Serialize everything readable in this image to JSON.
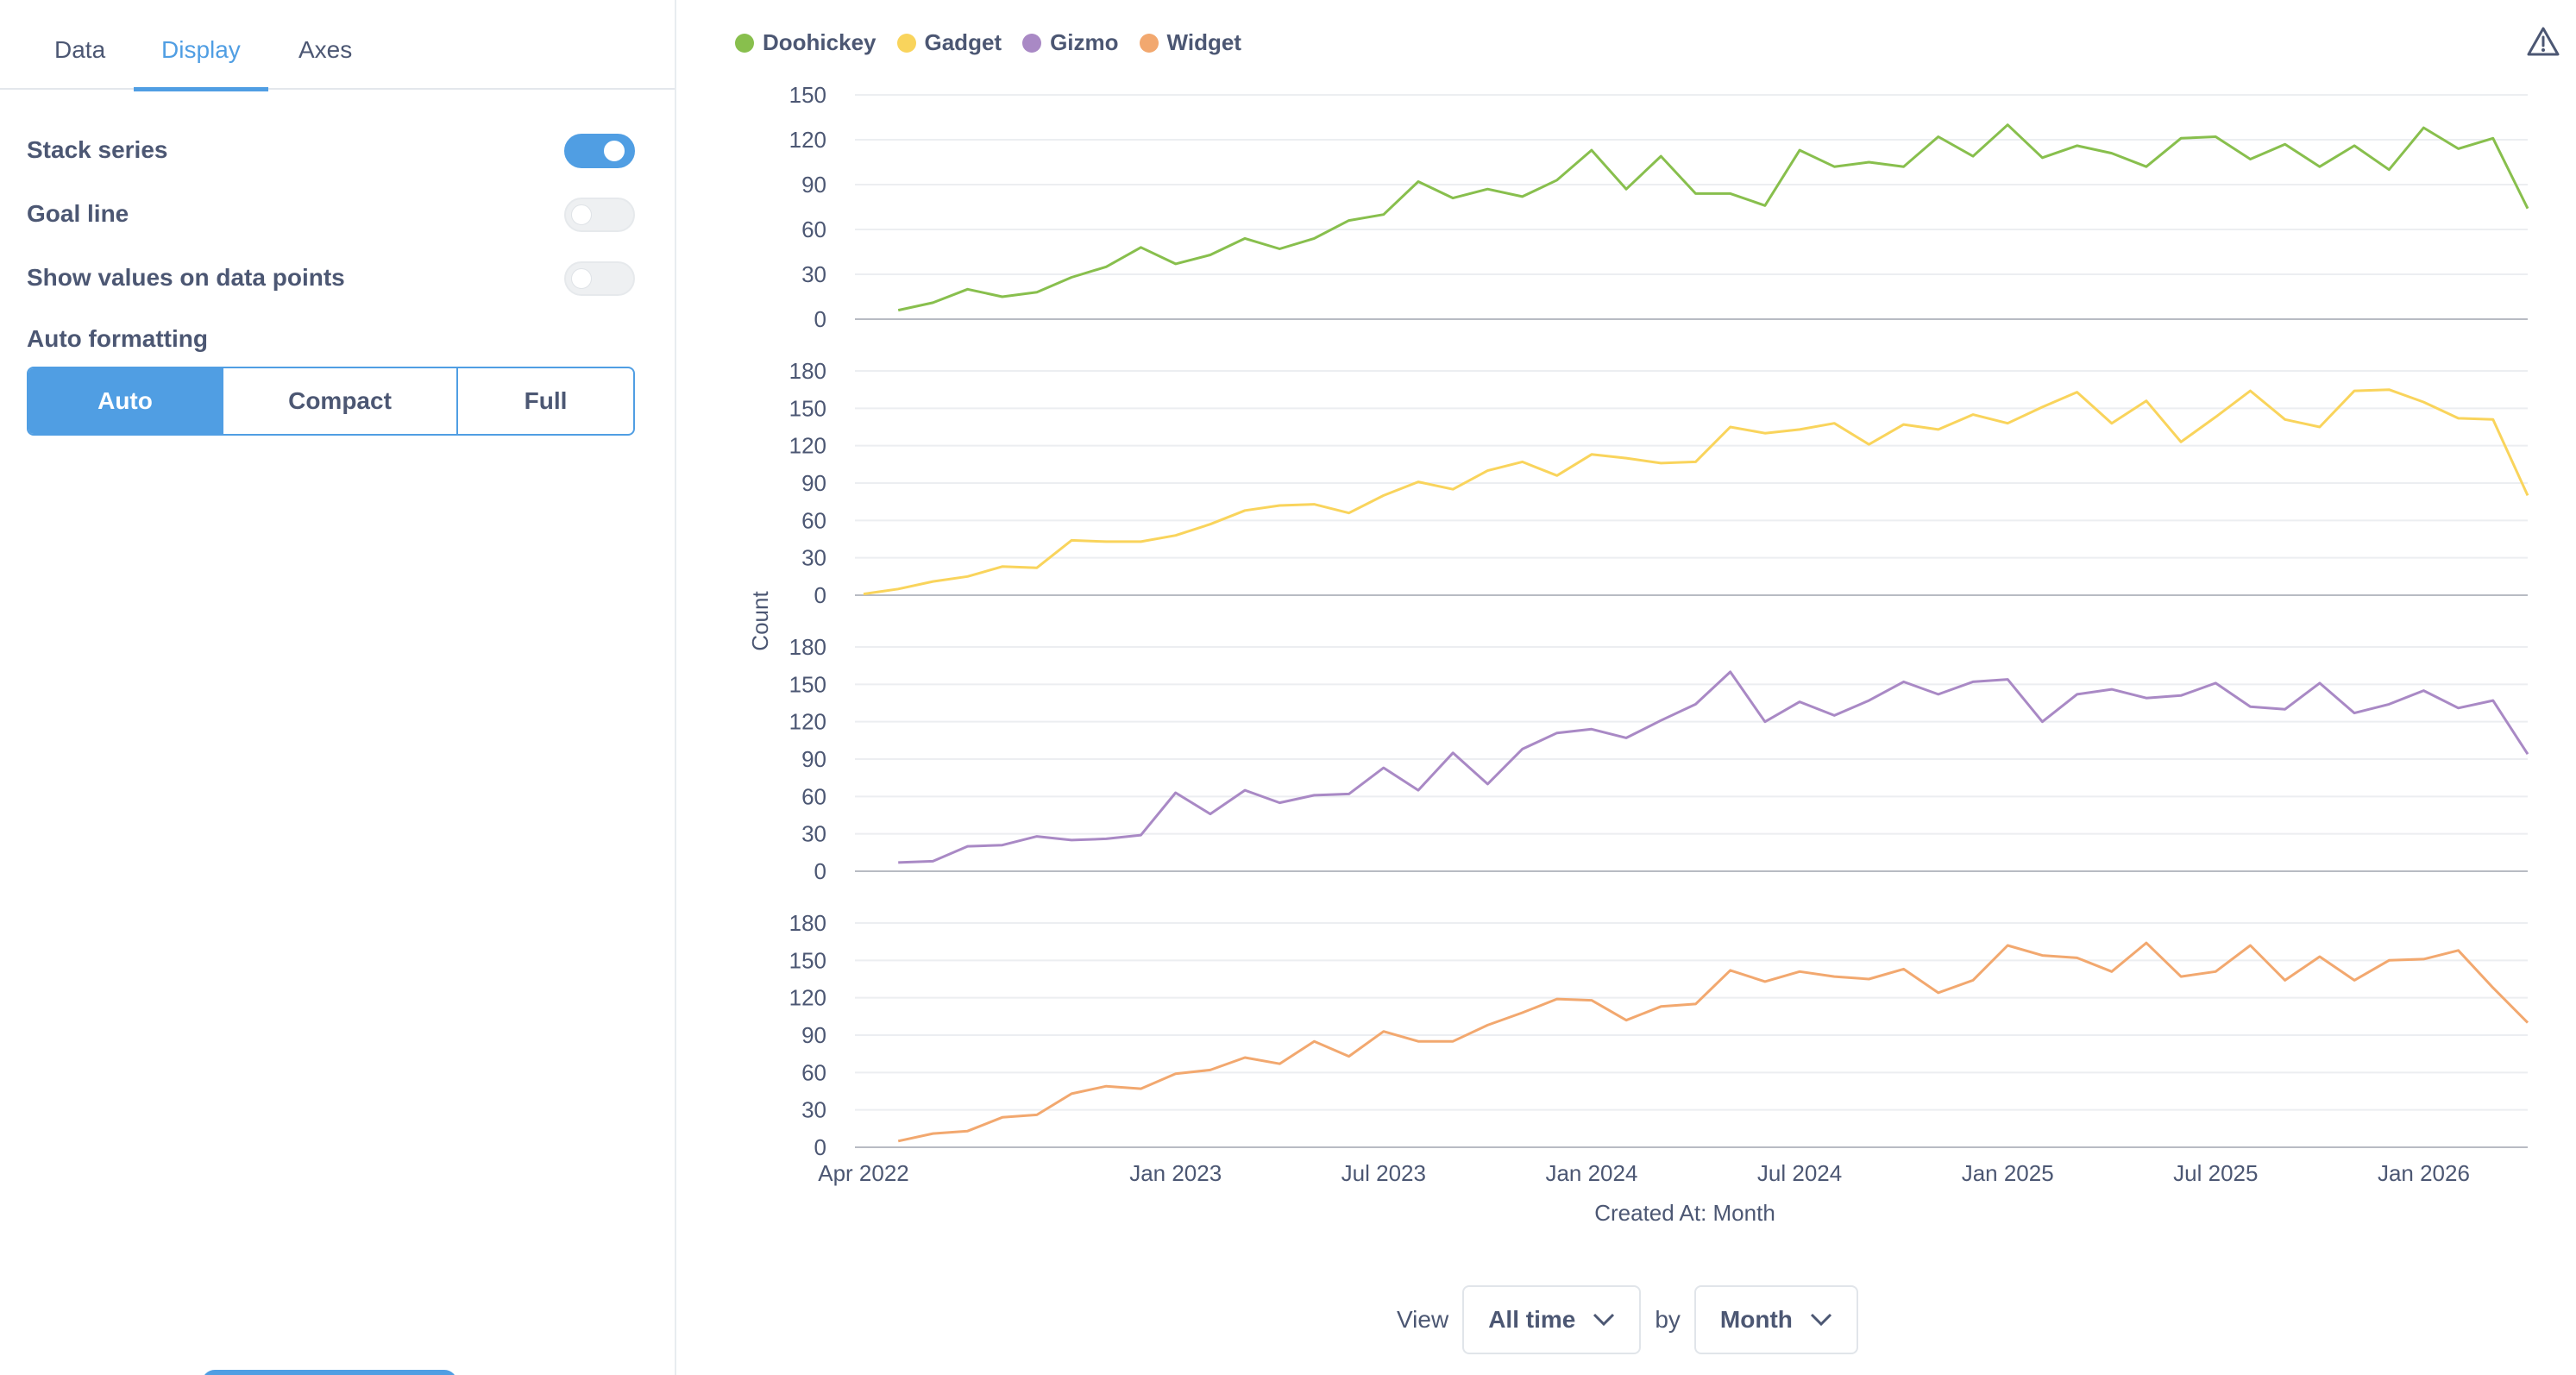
{
  "sidebar": {
    "tabs": [
      {
        "label": "Data"
      },
      {
        "label": "Display"
      },
      {
        "label": "Axes"
      }
    ],
    "settings": {
      "stack_series": {
        "label": "Stack series",
        "enabled": true
      },
      "goal_line": {
        "label": "Goal line",
        "enabled": false
      },
      "show_values": {
        "label": "Show values on data points",
        "enabled": false
      }
    },
    "auto_formatting": {
      "label": "Auto formatting",
      "options": [
        "Auto",
        "Compact",
        "Full"
      ],
      "selected": "Auto"
    }
  },
  "legend": [
    {
      "label": "Doohickey",
      "color": "#88bf4d"
    },
    {
      "label": "Gadget",
      "color": "#f9d45c"
    },
    {
      "label": "Gizmo",
      "color": "#a989c5"
    },
    {
      "label": "Widget",
      "color": "#f2a86f"
    }
  ],
  "icons": {
    "warning": "warning-triangle-icon",
    "chevron": "chevron-down-icon"
  },
  "footer": {
    "view_label": "View",
    "range_value": "All time",
    "by_label": "by",
    "unit_value": "Month"
  },
  "chart_data": {
    "type": "line",
    "layout": "stacked-panels",
    "xlabel": "Created At: Month",
    "ylabel": "Count",
    "x_ticks": [
      "Apr 2022",
      "Jan 2023",
      "Jul 2023",
      "Jan 2024",
      "Jul 2024",
      "Jan 2025",
      "Jul 2025",
      "Jan 2026"
    ],
    "x_start": "2022-04",
    "x_end": "2026-04",
    "grid": true,
    "series": [
      {
        "name": "Doohickey",
        "color": "#88bf4d",
        "y_ticks": [
          0,
          30,
          60,
          90,
          120,
          150
        ],
        "ylim": [
          0,
          150
        ],
        "points": [
          [
            "2022-05",
            6
          ],
          [
            "2022-06",
            11
          ],
          [
            "2022-07",
            20
          ],
          [
            "2022-08",
            15
          ],
          [
            "2022-09",
            18
          ],
          [
            "2022-10",
            28
          ],
          [
            "2022-11",
            35
          ],
          [
            "2022-12",
            48
          ],
          [
            "2023-01",
            37
          ],
          [
            "2023-02",
            43
          ],
          [
            "2023-03",
            54
          ],
          [
            "2023-04",
            47
          ],
          [
            "2023-05",
            54
          ],
          [
            "2023-06",
            66
          ],
          [
            "2023-07",
            70
          ],
          [
            "2023-08",
            92
          ],
          [
            "2023-09",
            81
          ],
          [
            "2023-10",
            87
          ],
          [
            "2023-11",
            82
          ],
          [
            "2023-12",
            93
          ],
          [
            "2024-01",
            113
          ],
          [
            "2024-02",
            87
          ],
          [
            "2024-03",
            109
          ],
          [
            "2024-04",
            84
          ],
          [
            "2024-05",
            84
          ],
          [
            "2024-06",
            76
          ],
          [
            "2024-07",
            113
          ],
          [
            "2024-08",
            102
          ],
          [
            "2024-09",
            105
          ],
          [
            "2024-10",
            102
          ],
          [
            "2024-11",
            122
          ],
          [
            "2024-12",
            109
          ],
          [
            "2025-01",
            130
          ],
          [
            "2025-02",
            108
          ],
          [
            "2025-03",
            116
          ],
          [
            "2025-04",
            111
          ],
          [
            "2025-05",
            102
          ],
          [
            "2025-06",
            121
          ],
          [
            "2025-07",
            122
          ],
          [
            "2025-08",
            107
          ],
          [
            "2025-09",
            117
          ],
          [
            "2025-10",
            102
          ],
          [
            "2025-11",
            116
          ],
          [
            "2025-12",
            100
          ],
          [
            "2026-01",
            128
          ],
          [
            "2026-02",
            114
          ],
          [
            "2026-03",
            121
          ],
          [
            "2026-04",
            74
          ]
        ]
      },
      {
        "name": "Gadget",
        "color": "#f9d45c",
        "y_ticks": [
          0,
          30,
          60,
          90,
          120,
          150,
          180
        ],
        "ylim": [
          0,
          180
        ],
        "points": [
          [
            "2022-04",
            1
          ],
          [
            "2022-05",
            5
          ],
          [
            "2022-06",
            11
          ],
          [
            "2022-07",
            15
          ],
          [
            "2022-08",
            23
          ],
          [
            "2022-09",
            22
          ],
          [
            "2022-10",
            44
          ],
          [
            "2022-11",
            43
          ],
          [
            "2022-12",
            43
          ],
          [
            "2023-01",
            48
          ],
          [
            "2023-02",
            57
          ],
          [
            "2023-03",
            68
          ],
          [
            "2023-04",
            72
          ],
          [
            "2023-05",
            73
          ],
          [
            "2023-06",
            66
          ],
          [
            "2023-07",
            80
          ],
          [
            "2023-08",
            91
          ],
          [
            "2023-09",
            85
          ],
          [
            "2023-10",
            100
          ],
          [
            "2023-11",
            107
          ],
          [
            "2023-12",
            96
          ],
          [
            "2024-01",
            113
          ],
          [
            "2024-02",
            110
          ],
          [
            "2024-03",
            106
          ],
          [
            "2024-04",
            107
          ],
          [
            "2024-05",
            135
          ],
          [
            "2024-06",
            130
          ],
          [
            "2024-07",
            133
          ],
          [
            "2024-08",
            138
          ],
          [
            "2024-09",
            121
          ],
          [
            "2024-10",
            137
          ],
          [
            "2024-11",
            133
          ],
          [
            "2024-12",
            145
          ],
          [
            "2025-01",
            138
          ],
          [
            "2025-02",
            151
          ],
          [
            "2025-03",
            163
          ],
          [
            "2025-04",
            138
          ],
          [
            "2025-05",
            156
          ],
          [
            "2025-06",
            123
          ],
          [
            "2025-07",
            143
          ],
          [
            "2025-08",
            164
          ],
          [
            "2025-09",
            141
          ],
          [
            "2025-10",
            135
          ],
          [
            "2025-11",
            164
          ],
          [
            "2025-12",
            165
          ],
          [
            "2026-01",
            155
          ],
          [
            "2026-02",
            142
          ],
          [
            "2026-03",
            141
          ],
          [
            "2026-04",
            80
          ]
        ]
      },
      {
        "name": "Gizmo",
        "color": "#a989c5",
        "y_ticks": [
          0,
          30,
          60,
          90,
          120,
          150,
          180
        ],
        "ylim": [
          0,
          180
        ],
        "points": [
          [
            "2022-05",
            7
          ],
          [
            "2022-06",
            8
          ],
          [
            "2022-07",
            20
          ],
          [
            "2022-08",
            21
          ],
          [
            "2022-09",
            28
          ],
          [
            "2022-10",
            25
          ],
          [
            "2022-11",
            26
          ],
          [
            "2022-12",
            29
          ],
          [
            "2023-01",
            63
          ],
          [
            "2023-02",
            46
          ],
          [
            "2023-03",
            65
          ],
          [
            "2023-04",
            55
          ],
          [
            "2023-05",
            61
          ],
          [
            "2023-06",
            62
          ],
          [
            "2023-07",
            83
          ],
          [
            "2023-08",
            65
          ],
          [
            "2023-09",
            95
          ],
          [
            "2023-10",
            70
          ],
          [
            "2023-11",
            98
          ],
          [
            "2023-12",
            111
          ],
          [
            "2024-01",
            114
          ],
          [
            "2024-02",
            107
          ],
          [
            "2024-03",
            121
          ],
          [
            "2024-04",
            134
          ],
          [
            "2024-05",
            160
          ],
          [
            "2024-06",
            120
          ],
          [
            "2024-07",
            136
          ],
          [
            "2024-08",
            125
          ],
          [
            "2024-09",
            137
          ],
          [
            "2024-10",
            152
          ],
          [
            "2024-11",
            142
          ],
          [
            "2024-12",
            152
          ],
          [
            "2025-01",
            154
          ],
          [
            "2025-02",
            120
          ],
          [
            "2025-03",
            142
          ],
          [
            "2025-04",
            146
          ],
          [
            "2025-05",
            139
          ],
          [
            "2025-06",
            141
          ],
          [
            "2025-07",
            151
          ],
          [
            "2025-08",
            132
          ],
          [
            "2025-09",
            130
          ],
          [
            "2025-10",
            151
          ],
          [
            "2025-11",
            127
          ],
          [
            "2025-12",
            134
          ],
          [
            "2026-01",
            145
          ],
          [
            "2026-02",
            131
          ],
          [
            "2026-03",
            137
          ],
          [
            "2026-04",
            94
          ]
        ]
      },
      {
        "name": "Widget",
        "color": "#f2a86f",
        "y_ticks": [
          0,
          30,
          60,
          90,
          120,
          150,
          180
        ],
        "ylim": [
          0,
          180
        ],
        "points": [
          [
            "2022-05",
            5
          ],
          [
            "2022-06",
            11
          ],
          [
            "2022-07",
            13
          ],
          [
            "2022-08",
            24
          ],
          [
            "2022-09",
            26
          ],
          [
            "2022-10",
            43
          ],
          [
            "2022-11",
            49
          ],
          [
            "2022-12",
            47
          ],
          [
            "2023-01",
            59
          ],
          [
            "2023-02",
            62
          ],
          [
            "2023-03",
            72
          ],
          [
            "2023-04",
            67
          ],
          [
            "2023-05",
            85
          ],
          [
            "2023-06",
            73
          ],
          [
            "2023-07",
            93
          ],
          [
            "2023-08",
            85
          ],
          [
            "2023-09",
            85
          ],
          [
            "2023-10",
            98
          ],
          [
            "2023-11",
            108
          ],
          [
            "2023-12",
            119
          ],
          [
            "2024-01",
            118
          ],
          [
            "2024-02",
            102
          ],
          [
            "2024-03",
            113
          ],
          [
            "2024-04",
            115
          ],
          [
            "2024-05",
            142
          ],
          [
            "2024-06",
            133
          ],
          [
            "2024-07",
            141
          ],
          [
            "2024-08",
            137
          ],
          [
            "2024-09",
            135
          ],
          [
            "2024-10",
            143
          ],
          [
            "2024-11",
            124
          ],
          [
            "2024-12",
            134
          ],
          [
            "2025-01",
            162
          ],
          [
            "2025-02",
            154
          ],
          [
            "2025-03",
            152
          ],
          [
            "2025-04",
            141
          ],
          [
            "2025-05",
            164
          ],
          [
            "2025-06",
            137
          ],
          [
            "2025-07",
            141
          ],
          [
            "2025-08",
            162
          ],
          [
            "2025-09",
            134
          ],
          [
            "2025-10",
            153
          ],
          [
            "2025-11",
            134
          ],
          [
            "2025-12",
            150
          ],
          [
            "2026-01",
            151
          ],
          [
            "2026-02",
            158
          ],
          [
            "2026-03",
            128
          ],
          [
            "2026-04",
            100
          ]
        ]
      }
    ]
  }
}
